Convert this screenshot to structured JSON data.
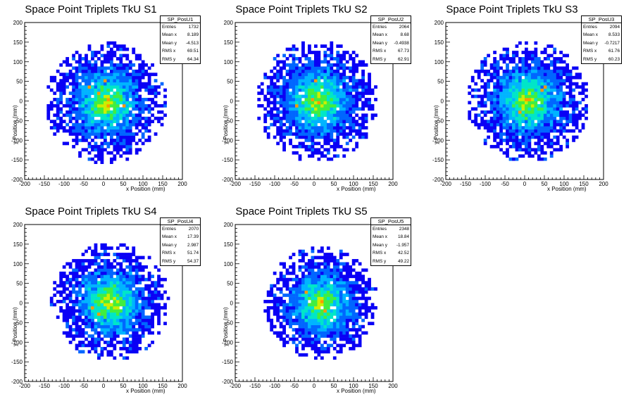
{
  "chart_data": [
    {
      "type": "heatmap",
      "title": "Space Point Triplets TkU S1",
      "xlabel": "x Position (mm)",
      "ylabel": "y Position (mm)",
      "xlim": [
        -200,
        200
      ],
      "ylim": [
        -200,
        200
      ],
      "xticks": [
        "-200",
        "-150",
        "-100",
        "-50",
        "0",
        "50",
        "100",
        "150",
        "200"
      ],
      "yticks": [
        "-200",
        "-150",
        "-100",
        "-50",
        "0",
        "50",
        "100",
        "150",
        "200"
      ],
      "distribution": {
        "center_x": 8.2,
        "center_y": -4.5,
        "radius": 155,
        "seed": 11
      },
      "stats": {
        "name": "SP_PosU1",
        "rows": [
          {
            "label": "Entries",
            "value": "1732"
          },
          {
            "label": "Mean x",
            "value": "8.189"
          },
          {
            "label": "Mean y",
            "value": "-4.513"
          },
          {
            "label": "RMS x",
            "value": "69.51"
          },
          {
            "label": "RMS y",
            "value": "64.34"
          }
        ]
      }
    },
    {
      "type": "heatmap",
      "title": "Space Point Triplets TkU S2",
      "xlabel": "x Position (mm)",
      "ylabel": "y Position (mm)",
      "xlim": [
        -200,
        200
      ],
      "ylim": [
        -200,
        200
      ],
      "xticks": [
        "-200",
        "-150",
        "-100",
        "-50",
        "0",
        "50",
        "100",
        "150",
        "200"
      ],
      "yticks": [
        "-200",
        "-150",
        "-100",
        "-50",
        "0",
        "50",
        "100",
        "150",
        "200"
      ],
      "distribution": {
        "center_x": 8.7,
        "center_y": -0.5,
        "radius": 155,
        "seed": 23
      },
      "stats": {
        "name": "SP_PosU2",
        "rows": [
          {
            "label": "Entries",
            "value": "2064"
          },
          {
            "label": "Mean x",
            "value": "8.68"
          },
          {
            "label": "Mean y",
            "value": "-0.4938"
          },
          {
            "label": "RMS x",
            "value": "67.73"
          },
          {
            "label": "RMS y",
            "value": "62.91"
          }
        ]
      }
    },
    {
      "type": "heatmap",
      "title": "Space Point Triplets TkU S3",
      "xlabel": "x Position (mm)",
      "ylabel": "y Position (mm)",
      "xlim": [
        -200,
        200
      ],
      "ylim": [
        -200,
        200
      ],
      "xticks": [
        "-200",
        "-150",
        "-100",
        "-50",
        "0",
        "50",
        "100",
        "150",
        "200"
      ],
      "yticks": [
        "-200",
        "-150",
        "-100",
        "-50",
        "0",
        "50",
        "100",
        "150",
        "200"
      ],
      "distribution": {
        "center_x": 8.5,
        "center_y": -0.7,
        "radius": 155,
        "seed": 37
      },
      "stats": {
        "name": "SP_PosU3",
        "rows": [
          {
            "label": "Entries",
            "value": "2094"
          },
          {
            "label": "Mean x",
            "value": "8.533"
          },
          {
            "label": "Mean y",
            "value": "-0.7217"
          },
          {
            "label": "RMS x",
            "value": "61.76"
          },
          {
            "label": "RMS y",
            "value": "60.23"
          }
        ]
      }
    },
    {
      "type": "heatmap",
      "title": "Space Point Triplets TkU S4",
      "xlabel": "x Position (mm)",
      "ylabel": "y Position (mm)",
      "xlim": [
        -200,
        200
      ],
      "ylim": [
        -200,
        200
      ],
      "xticks": [
        "-200",
        "-150",
        "-100",
        "-50",
        "0",
        "50",
        "100",
        "150",
        "200"
      ],
      "yticks": [
        "-200",
        "-150",
        "-100",
        "-50",
        "0",
        "50",
        "100",
        "150",
        "200"
      ],
      "distribution": {
        "center_x": 17.4,
        "center_y": 3.0,
        "radius": 150,
        "seed": 41
      },
      "stats": {
        "name": "SP_PosU4",
        "rows": [
          {
            "label": "Entries",
            "value": "2070"
          },
          {
            "label": "Mean x",
            "value": "17.39"
          },
          {
            "label": "Mean y",
            "value": "2.987"
          },
          {
            "label": "RMS x",
            "value": "51.74"
          },
          {
            "label": "RMS y",
            "value": "54.37"
          }
        ]
      }
    },
    {
      "type": "heatmap",
      "title": "Space Point Triplets TkU S5",
      "xlabel": "x Position (mm)",
      "ylabel": "y Position (mm)",
      "xlim": [
        -200,
        200
      ],
      "ylim": [
        -200,
        200
      ],
      "xticks": [
        "-200",
        "-150",
        "-100",
        "-50",
        "0",
        "50",
        "100",
        "150",
        "200"
      ],
      "yticks": [
        "-200",
        "-150",
        "-100",
        "-50",
        "0",
        "50",
        "100",
        "150",
        "200"
      ],
      "distribution": {
        "center_x": 18.8,
        "center_y": -2.0,
        "radius": 145,
        "seed": 53
      },
      "stats": {
        "name": "SP_PosU5",
        "rows": [
          {
            "label": "Entries",
            "value": "2348"
          },
          {
            "label": "Mean x",
            "value": "18.84"
          },
          {
            "label": "Mean y",
            "value": "-1.957"
          },
          {
            "label": "RMS x",
            "value": "42.52"
          },
          {
            "label": "RMS y",
            "value": "49.22"
          }
        ]
      }
    }
  ]
}
